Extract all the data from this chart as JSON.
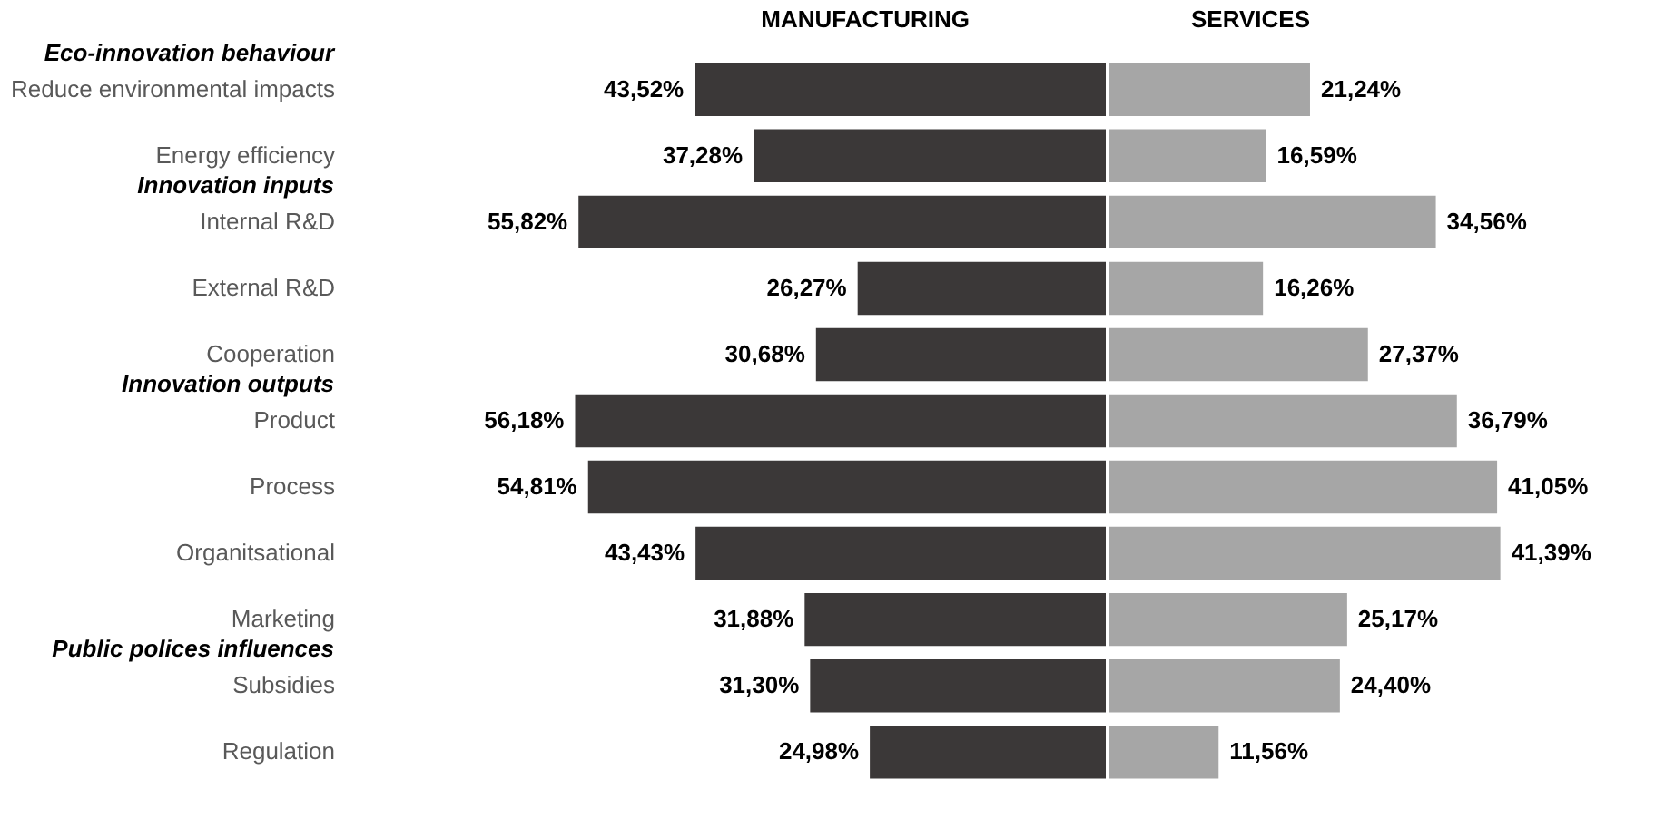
{
  "chart_data": [
    {
      "type": "bar",
      "orientation": "horizontal",
      "title": "MANUFACTURING",
      "categories": [
        "Reduce environmental impacts",
        "Energy efficiency",
        "Internal R&D",
        "External R&D",
        "Cooperation",
        "Product",
        "Process",
        "Organitsational",
        "Marketing",
        "Subsidies",
        "Regulation"
      ],
      "values": [
        43.52,
        37.28,
        55.82,
        26.27,
        30.68,
        56.18,
        54.81,
        43.43,
        31.88,
        31.3,
        24.98
      ],
      "value_labels": [
        "43,52%",
        "37,28%",
        "55,82%",
        "26,27%",
        "30,68%",
        "56,18%",
        "54,81%",
        "43,43%",
        "31,88%",
        "31,30%",
        "24,98%"
      ],
      "color": "#3b3838",
      "annotations": [
        "Eco-innovation behaviour",
        "Innovation inputs",
        "Innovation outputs",
        "Public polices influences"
      ],
      "legend": false,
      "grid": false,
      "tick_labels": "y"
    },
    {
      "type": "bar",
      "orientation": "horizontal",
      "title": "SERVICES",
      "categories": [
        null,
        null,
        null,
        null,
        null,
        null,
        null,
        null,
        null,
        null,
        null
      ],
      "values": [
        21.24,
        16.59,
        34.56,
        16.26,
        27.37,
        36.79,
        41.05,
        41.39,
        25.17,
        24.4,
        11.56
      ],
      "value_labels": [
        "21,24%",
        "16,59%",
        "34,56%",
        "16,26%",
        "27,37%",
        "36,79%",
        "41,05%",
        "41,39%",
        "25,17%",
        "24,40%",
        "11,56%"
      ],
      "color": "#a6a6a6",
      "legend": false,
      "grid": false,
      "tick_labels": false
    }
  ]
}
